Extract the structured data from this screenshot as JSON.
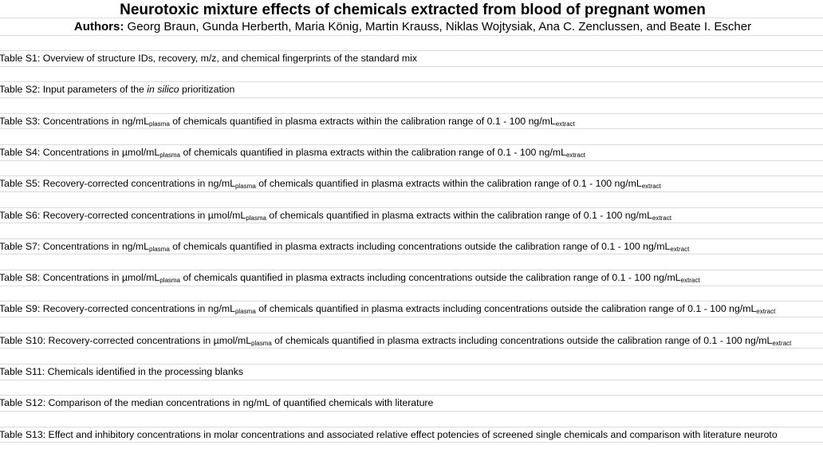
{
  "header": {
    "title": "Neurotoxic mixture effects of chemicals extracted from blood of pregnant women",
    "authors_label": "Authors:",
    "authors": "Georg Braun, Gunda Herberth, Maria König, Martin Krauss, Niklas Wojtysiak, Ana C. Zenclussen, and Beate I. Escher"
  },
  "rows": [
    {
      "label": "Table S1:",
      "segments": [
        {
          "text": "Overview of structure IDs, recovery, m/z, and chemical fingerprints of the standard mix"
        }
      ]
    },
    {
      "label": "Table S2:",
      "segments": [
        {
          "text": "Input parameters of the"
        },
        {
          "italic": "in silico"
        },
        {
          "text": "prioritization"
        }
      ]
    },
    {
      "label": "Table S3:",
      "segments": [
        {
          "text": "Concentrations in ng/mL"
        },
        {
          "sub": "plasma"
        },
        {
          "text": "of chemicals quantified in plasma extracts within the calibration range of 0.1 - 100 ng/mL"
        },
        {
          "sub": "extract"
        }
      ]
    },
    {
      "label": "Table S4:",
      "segments": [
        {
          "text": "Concentrations in µmol/mL"
        },
        {
          "sub": "plasma"
        },
        {
          "text": "of chemicals quantified in plasma extracts within the calibration range of 0.1 - 100 ng/mL"
        },
        {
          "sub": "extract"
        }
      ]
    },
    {
      "label": "Table S5:",
      "segments": [
        {
          "text": "Recovery-corrected concentrations in ng/mL"
        },
        {
          "sub": "plasma"
        },
        {
          "text": "of chemicals quantified in plasma extracts within the calibration range of 0.1 - 100 ng/mL"
        },
        {
          "sub": "extract"
        }
      ]
    },
    {
      "label": "Table S6:",
      "segments": [
        {
          "text": "Recovery-corrected concentrations in µmol/mL"
        },
        {
          "sub": "plasma"
        },
        {
          "text": "of chemicals quantified in plasma extracts within the calibration range of 0.1 - 100 ng/mL"
        },
        {
          "sub": "extract"
        }
      ]
    },
    {
      "label": "Table S7:",
      "segments": [
        {
          "text": "Concentrations in ng/mL"
        },
        {
          "sub": "plasma"
        },
        {
          "text": "of chemicals quantified in plasma extracts including concentrations outside the calibration range of 0.1 - 100 ng/mL"
        },
        {
          "sub": "extract"
        }
      ]
    },
    {
      "label": "Table S8:",
      "segments": [
        {
          "text": "Concentrations in µmol/mL"
        },
        {
          "sub": "plasma"
        },
        {
          "text": "of chemicals quantified in plasma extracts including concentrations outside the calibration range of 0.1 - 100 ng/mL"
        },
        {
          "sub": "extract"
        }
      ]
    },
    {
      "label": "Table S9:",
      "segments": [
        {
          "text": "Recovery-corrected concentrations in ng/mL"
        },
        {
          "sub": "plasma"
        },
        {
          "text": "of chemicals quantified in plasma extracts including concentrations outside the calibration range of 0.1 - 100 ng/mL"
        },
        {
          "sub": "extract"
        }
      ]
    },
    {
      "label": "Table S10:",
      "segments": [
        {
          "text": "Recovery-corrected concentrations in µmol/mL"
        },
        {
          "sub": "plasma"
        },
        {
          "text": "of chemicals quantified in plasma extracts including concentrations outside the calibration range of 0.1 - 100 ng/mL"
        },
        {
          "sub": "extract"
        }
      ]
    },
    {
      "label": "Table S11:",
      "segments": [
        {
          "text": "Chemicals identified in the processing blanks"
        }
      ]
    },
    {
      "label": "Table S12:",
      "segments": [
        {
          "text": "Comparison of the median concentrations in ng/mL of quantified chemicals with literature"
        }
      ]
    },
    {
      "label": "Table S13:",
      "segments": [
        {
          "text": "Effect and inhibitory concentrations in molar concentrations and associated relative effect potencies of screened single chemicals and comparison with literature neuroto"
        }
      ]
    }
  ]
}
